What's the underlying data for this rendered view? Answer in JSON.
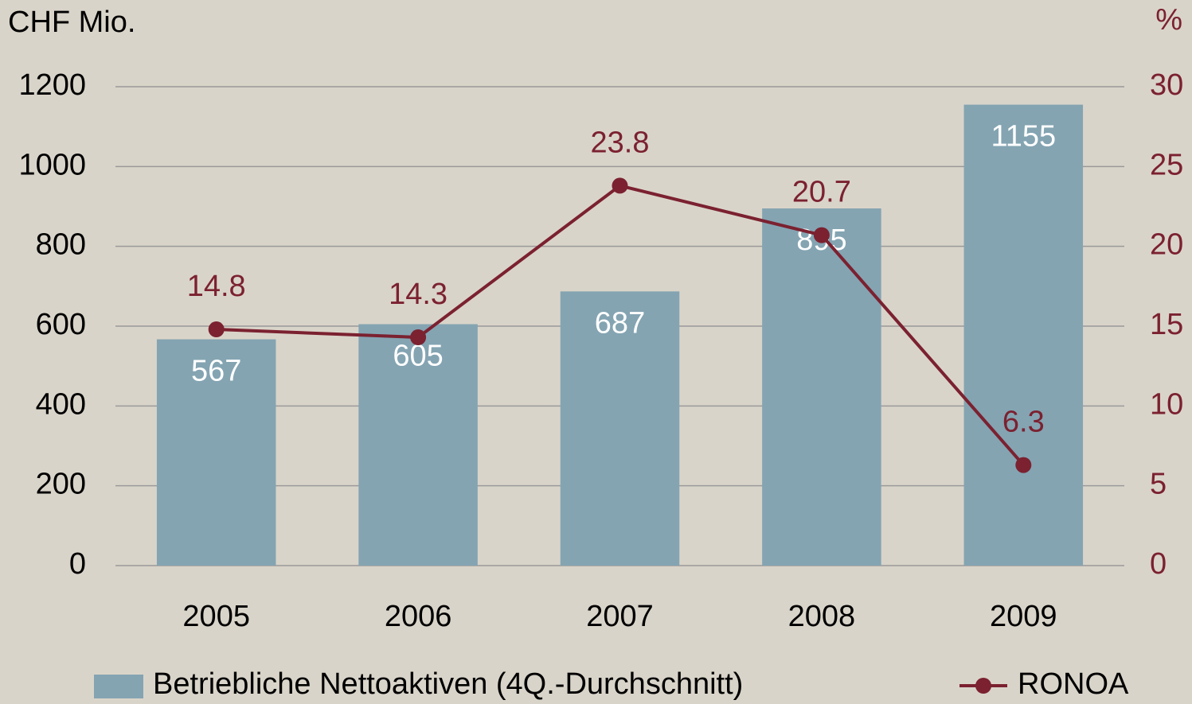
{
  "chart_data": {
    "type": "bar",
    "y_label": "CHF Mio.",
    "y2_label": "%",
    "categories": [
      "2005",
      "2006",
      "2007",
      "2008",
      "2009"
    ],
    "series": [
      {
        "name": "Betriebliche Nettoaktiven (4Q.-Durchschnitt)",
        "type": "bar",
        "color": "#84a4b2",
        "values": [
          567,
          605,
          687,
          895,
          1155
        ]
      },
      {
        "name": "RONOA",
        "type": "line",
        "axis": "y2",
        "color": "#7b2130",
        "values": [
          14.8,
          14.3,
          23.8,
          20.7,
          6.3
        ]
      }
    ],
    "ylim": [
      0,
      1200
    ],
    "yticks": [
      0,
      200,
      400,
      600,
      800,
      1000,
      1200
    ],
    "y2lim": [
      0,
      30
    ],
    "y2ticks": [
      0,
      5,
      10,
      15,
      20,
      25,
      30
    ],
    "grid": true
  }
}
